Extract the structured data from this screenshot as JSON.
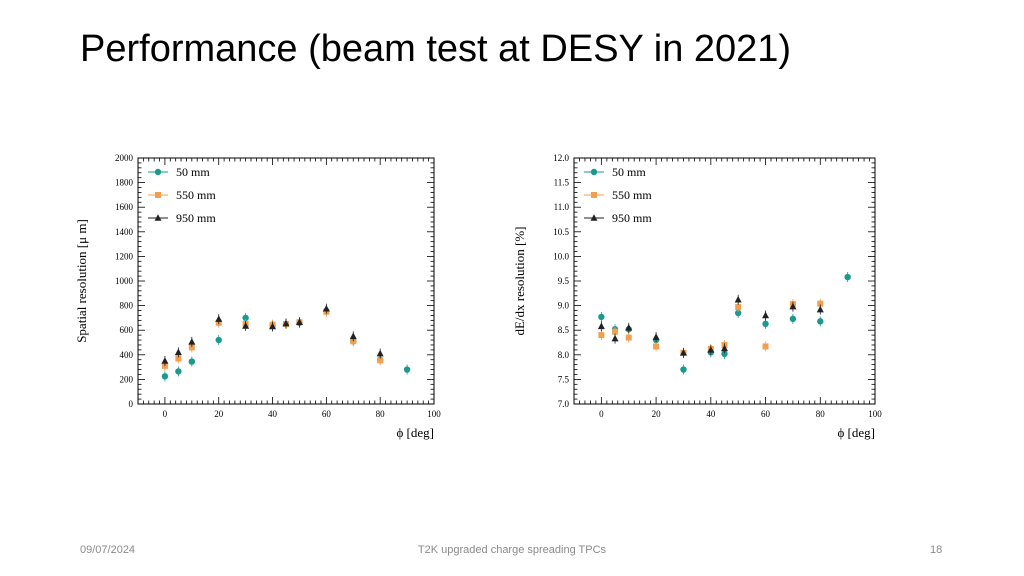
{
  "slide": {
    "title": "Performance (beam test at DESY in 2021)",
    "date": "09/07/2024",
    "footer_text": "T2K upgraded charge spreading TPCs",
    "page_number": "18"
  },
  "colors": {
    "series_50": "#1a9a8c",
    "series_550": "#f0a050",
    "series_950": "#222222"
  },
  "chart_data": [
    {
      "type": "scatter",
      "xlabel": "ϕ [deg]",
      "ylabel": "Spatial resolution [μ m]",
      "xlim": [
        -10,
        100
      ],
      "ylim": [
        0,
        2000
      ],
      "xticks": [
        0,
        20,
        40,
        60,
        80,
        100
      ],
      "yticks": [
        0,
        200,
        400,
        600,
        800,
        1000,
        1200,
        1400,
        1600,
        1800,
        2000
      ],
      "legend": "top-left",
      "series": [
        {
          "name": "50 mm",
          "marker": "circle",
          "x": [
            0,
            5,
            10,
            20,
            30,
            40,
            45,
            50,
            60,
            70,
            80,
            90
          ],
          "y": [
            225,
            265,
            345,
            520,
            700,
            635,
            650,
            660,
            755,
            510,
            360,
            280
          ]
        },
        {
          "name": "550 mm",
          "marker": "square",
          "x": [
            0,
            5,
            10,
            20,
            30,
            40,
            45,
            50,
            60,
            70,
            80
          ],
          "y": [
            310,
            370,
            460,
            660,
            650,
            645,
            650,
            665,
            750,
            510,
            355
          ]
        },
        {
          "name": "950 mm",
          "marker": "triangle",
          "x": [
            0,
            5,
            10,
            20,
            30,
            40,
            45,
            50,
            60,
            70,
            80
          ],
          "y": [
            350,
            420,
            505,
            690,
            635,
            630,
            655,
            665,
            775,
            550,
            410
          ]
        }
      ]
    },
    {
      "type": "scatter",
      "xlabel": "ϕ [deg]",
      "ylabel": "dE/dx resolution [%]",
      "xlim": [
        -10,
        100
      ],
      "ylim": [
        7.0,
        12.0
      ],
      "xticks": [
        0,
        20,
        40,
        60,
        80,
        100
      ],
      "yticks": [
        "7.0",
        "7.5",
        "8.0",
        "8.5",
        "9.0",
        "9.5",
        "10.0",
        "10.5",
        "11.0",
        "11.5",
        "12.0"
      ],
      "legend": "top-left",
      "series": [
        {
          "name": "50 mm",
          "marker": "circle",
          "x": [
            0,
            5,
            10,
            20,
            30,
            40,
            45,
            50,
            60,
            70,
            80,
            90
          ],
          "y": [
            8.77,
            8.52,
            8.52,
            8.3,
            7.7,
            8.05,
            8.02,
            8.85,
            8.63,
            8.73,
            8.68,
            9.58
          ]
        },
        {
          "name": "550 mm",
          "marker": "square",
          "x": [
            0,
            5,
            10,
            20,
            30,
            40,
            45,
            50,
            60,
            70,
            80
          ],
          "y": [
            8.4,
            8.47,
            8.35,
            8.17,
            8.04,
            8.12,
            8.2,
            8.97,
            8.17,
            9.03,
            9.04
          ]
        },
        {
          "name": "950 mm",
          "marker": "triangle",
          "x": [
            0,
            5,
            10,
            20,
            30,
            40,
            45,
            50,
            60,
            70,
            80
          ],
          "y": [
            8.58,
            8.33,
            8.55,
            8.36,
            8.04,
            8.1,
            8.13,
            9.12,
            8.8,
            8.98,
            8.92
          ]
        }
      ]
    }
  ]
}
